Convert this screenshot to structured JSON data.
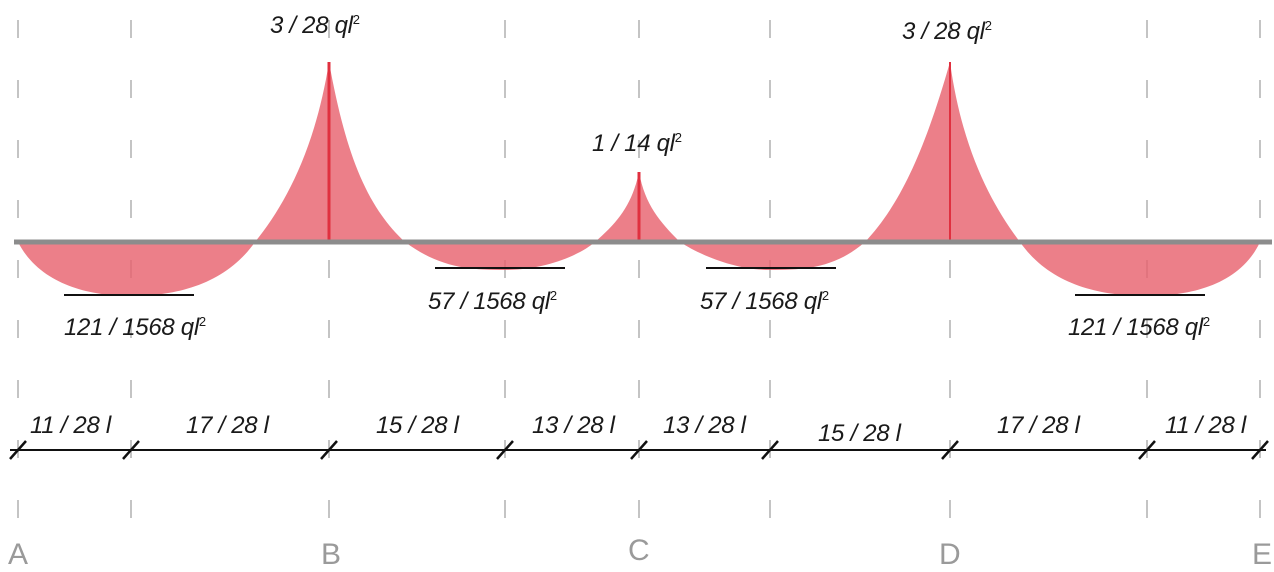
{
  "moment_labels": {
    "peak_b": {
      "coef": "3 / 28 ql",
      "exp": "2"
    },
    "peak_c": {
      "coef": "1 / 14 ql",
      "exp": "2"
    },
    "peak_d": {
      "coef": "3 / 28 ql",
      "exp": "2"
    },
    "span_ab": {
      "coef": "121 / 1568 ql",
      "exp": "2"
    },
    "span_bc": {
      "coef": "57 / 1568 ql",
      "exp": "2"
    },
    "span_cd": {
      "coef": "57 / 1568 ql",
      "exp": "2"
    },
    "span_de": {
      "coef": "121 / 1568 ql",
      "exp": "2"
    }
  },
  "dimensions": [
    "11 / 28 l",
    "17 / 28 l",
    "15 / 28 l",
    "13 / 28 l",
    "13 / 28 l",
    "15 / 28 l",
    "17 / 28 l",
    "11 / 28 l"
  ],
  "supports": [
    "A",
    "B",
    "C",
    "D",
    "E"
  ],
  "colors": {
    "moment_fill": "#e8636f",
    "moment_line": "#e0303f",
    "beam": "#8c8c8c",
    "guide": "#c4c4c4",
    "support_text": "#9a9a9a"
  }
}
